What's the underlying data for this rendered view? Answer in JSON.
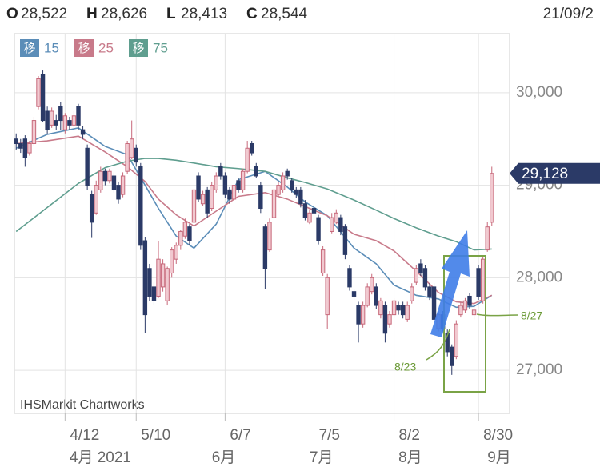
{
  "header": {
    "items": [
      {
        "label": "O",
        "value": "28,522"
      },
      {
        "label": "H",
        "value": "28,626"
      },
      {
        "label": "L",
        "value": "28,413"
      },
      {
        "label": "C",
        "value": "28,544"
      }
    ],
    "date": "21/09/2"
  },
  "chart_data": {
    "type": "candlestick",
    "watermark": "IHSMarkit Chartworks",
    "xlim": [
      -0.4,
      111
    ],
    "ylim": [
      26534,
      30638
    ],
    "yticks": [
      {
        "value": 27000,
        "label": "27,000"
      },
      {
        "value": 28000,
        "label": "28,000"
      },
      {
        "value": 29000,
        "label": "29,000"
      },
      {
        "value": 30000,
        "label": "30,000"
      }
    ],
    "xticks": [
      {
        "value": 11,
        "label": "4/12"
      },
      {
        "value": 27,
        "label": "5/10"
      },
      {
        "value": 47,
        "label": "6/7"
      },
      {
        "value": 67,
        "label": "7/5"
      },
      {
        "value": 85,
        "label": "8/2"
      },
      {
        "value": 104,
        "label": "8/30"
      }
    ],
    "month_ticks": [
      {
        "value": 12,
        "label": "4月 2021"
      },
      {
        "value": 44,
        "label": "6月"
      },
      {
        "value": 66,
        "label": "7月"
      },
      {
        "value": 86,
        "label": "8月"
      },
      {
        "value": 106,
        "label": "9月"
      }
    ],
    "grid": true,
    "up_color": "#c7687a",
    "down_color": "#2b3a67",
    "candles": [
      [
        29500,
        29560,
        29380,
        29450
      ],
      [
        29450,
        29500,
        29350,
        29400
      ],
      [
        29500,
        29540,
        29200,
        29300
      ],
      [
        29350,
        29480,
        29320,
        29450
      ],
      [
        29450,
        29740,
        29420,
        29700
      ],
      [
        29850,
        30180,
        29820,
        30150
      ],
      [
        30200,
        30240,
        29680,
        29700
      ],
      [
        29800,
        29850,
        29550,
        29600
      ],
      [
        29650,
        29840,
        29620,
        29800
      ],
      [
        29700,
        29760,
        29600,
        29650
      ],
      [
        29850,
        29900,
        29600,
        29700
      ],
      [
        29600,
        29780,
        29560,
        29750
      ],
      [
        29700,
        29740,
        29600,
        29650
      ],
      [
        29650,
        29800,
        29620,
        29750
      ],
      [
        29850,
        29880,
        29600,
        29650
      ],
      [
        29600,
        29640,
        29500,
        29550
      ],
      [
        29400,
        29440,
        28950,
        29000
      ],
      [
        28900,
        28940,
        28430,
        28600
      ],
      [
        28700,
        29050,
        28680,
        29000
      ],
      [
        28950,
        29200,
        28920,
        29150
      ],
      [
        29150,
        29180,
        29000,
        29050
      ],
      [
        29050,
        29180,
        29020,
        29150
      ],
      [
        29100,
        29140,
        28920,
        28950
      ],
      [
        29000,
        29040,
        28800,
        28850
      ],
      [
        28900,
        29140,
        28870,
        29100
      ],
      [
        29150,
        29480,
        29120,
        29450
      ],
      [
        29300,
        29700,
        29280,
        29500
      ],
      [
        29400,
        29440,
        29200,
        29250
      ],
      [
        29200,
        29240,
        28300,
        28350
      ],
      [
        28400,
        28440,
        27400,
        27600
      ],
      [
        28100,
        28150,
        27750,
        27800
      ],
      [
        27900,
        27950,
        27700,
        27750
      ],
      [
        27800,
        28400,
        27780,
        28200
      ],
      [
        27900,
        28200,
        27850,
        28150
      ],
      [
        27750,
        28120,
        27700,
        28100
      ],
      [
        28050,
        28330,
        28000,
        28300
      ],
      [
        28200,
        28380,
        28150,
        28350
      ],
      [
        28350,
        28520,
        28300,
        28500
      ],
      [
        28450,
        28640,
        28420,
        28600
      ],
      [
        28550,
        28580,
        28350,
        28400
      ],
      [
        28600,
        28980,
        28580,
        28950
      ],
      [
        29100,
        29140,
        28820,
        28850
      ],
      [
        28800,
        28940,
        28780,
        28900
      ],
      [
        28950,
        28980,
        28650,
        28700
      ],
      [
        28750,
        29040,
        28720,
        29000
      ],
      [
        28950,
        29140,
        28920,
        29100
      ],
      [
        29200,
        29240,
        29060,
        29100
      ],
      [
        29100,
        29140,
        28860,
        28900
      ],
      [
        28950,
        28980,
        28800,
        28850
      ],
      [
        28850,
        29040,
        28820,
        29000
      ],
      [
        29050,
        29080,
        28920,
        28950
      ],
      [
        28950,
        29180,
        28920,
        29150
      ],
      [
        29150,
        29480,
        29130,
        29400
      ],
      [
        29450,
        29480,
        29320,
        29350
      ],
      [
        29200,
        29240,
        29080,
        29100
      ],
      [
        29000,
        29040,
        28700,
        28750
      ],
      [
        28550,
        28580,
        27880,
        28100
      ],
      [
        28300,
        28640,
        28280,
        28600
      ],
      [
        28650,
        28980,
        28620,
        28950
      ],
      [
        28900,
        29040,
        28880,
        29000
      ],
      [
        28950,
        29140,
        28920,
        29100
      ],
      [
        29150,
        29180,
        29060,
        29100
      ],
      [
        29050,
        29080,
        28920,
        28950
      ],
      [
        28950,
        28980,
        28860,
        28900
      ],
      [
        28950,
        28980,
        28760,
        28800
      ],
      [
        28800,
        28840,
        28620,
        28650
      ],
      [
        28600,
        28740,
        28580,
        28700
      ],
      [
        28750,
        28780,
        28660,
        28700
      ],
      [
        28650,
        28680,
        28360,
        28400
      ],
      [
        28050,
        28340,
        28020,
        28300
      ],
      [
        27600,
        28040,
        27450,
        28000
      ],
      [
        28500,
        28700,
        28480,
        28650
      ],
      [
        28600,
        28740,
        28580,
        28700
      ],
      [
        28650,
        28680,
        28460,
        28500
      ],
      [
        28550,
        28580,
        28200,
        28250
      ],
      [
        28100,
        28140,
        27860,
        27900
      ],
      [
        27850,
        27880,
        27760,
        27800
      ],
      [
        27700,
        27740,
        27300,
        27500
      ],
      [
        27500,
        27740,
        27460,
        27700
      ],
      [
        27700,
        27940,
        27680,
        27900
      ],
      [
        27850,
        28040,
        27820,
        28000
      ],
      [
        27900,
        27940,
        27660,
        27700
      ],
      [
        27600,
        27780,
        27560,
        27750
      ],
      [
        27700,
        27740,
        27300,
        27400
      ],
      [
        27500,
        27640,
        27460,
        27600
      ],
      [
        27600,
        27780,
        27560,
        27750
      ],
      [
        27700,
        27740,
        27600,
        27650
      ],
      [
        27700,
        27740,
        27560,
        27600
      ],
      [
        27550,
        27740,
        27520,
        27700
      ],
      [
        27750,
        27940,
        27720,
        27900
      ],
      [
        27950,
        28140,
        27920,
        28100
      ],
      [
        28150,
        28200,
        28020,
        28050
      ],
      [
        28100,
        28140,
        27860,
        27900
      ],
      [
        27900,
        27940,
        27760,
        27800
      ],
      [
        27900,
        27940,
        27500,
        27550
      ],
      [
        27450,
        27640,
        27420,
        27600
      ],
      [
        27600,
        27640,
        27420,
        27450
      ],
      [
        27400,
        27440,
        27150,
        27200
      ],
      [
        27250,
        27280,
        26950,
        27050
      ],
      [
        27150,
        27540,
        27120,
        27500
      ],
      [
        27600,
        27740,
        27570,
        27700
      ],
      [
        27650,
        27780,
        27620,
        27750
      ],
      [
        27800,
        27830,
        27660,
        27700
      ],
      [
        27600,
        27690,
        27550,
        27650
      ],
      [
        28100,
        28140,
        27760,
        27800
      ],
      [
        27750,
        28240,
        27720,
        28200
      ],
      [
        28300,
        28600,
        28280,
        28550
      ],
      [
        28600,
        29200,
        28560,
        29128
      ]
    ],
    "ma_x": [
      0,
      7,
      14,
      20,
      25,
      29,
      32,
      36,
      40,
      45,
      50,
      56,
      61,
      65,
      70,
      76,
      81,
      85,
      90,
      95,
      99,
      103,
      107
    ],
    "series": [
      {
        "badge": "移",
        "name": "15",
        "color": "#5b8db8",
        "values": [
          29400,
          29550,
          29620,
          29420,
          29330,
          29000,
          28750,
          28450,
          28320,
          28580,
          29060,
          29150,
          28980,
          28820,
          28670,
          28320,
          28150,
          27920,
          27810,
          27770,
          27680,
          27690,
          27810
        ]
      },
      {
        "badge": "移",
        "name": "25",
        "color": "#c87a8a",
        "values": [
          29450,
          29480,
          29530,
          29360,
          29200,
          29040,
          28850,
          28680,
          28560,
          28720,
          28880,
          28920,
          28850,
          28770,
          28670,
          28470,
          28400,
          28290,
          28070,
          27840,
          27740,
          27720,
          27810
        ]
      },
      {
        "badge": "移",
        "name": "75",
        "color": "#5f9e8f",
        "values": [
          28500,
          28760,
          29020,
          29190,
          29260,
          29290,
          29290,
          29270,
          29240,
          29200,
          29180,
          29150,
          29080,
          29030,
          28960,
          28840,
          28730,
          28640,
          28540,
          28450,
          28390,
          28300,
          28310
        ]
      }
    ],
    "last_price": {
      "value": 29128,
      "label": "29,128"
    },
    "annotations": [
      "8/23",
      "8/27"
    ]
  }
}
